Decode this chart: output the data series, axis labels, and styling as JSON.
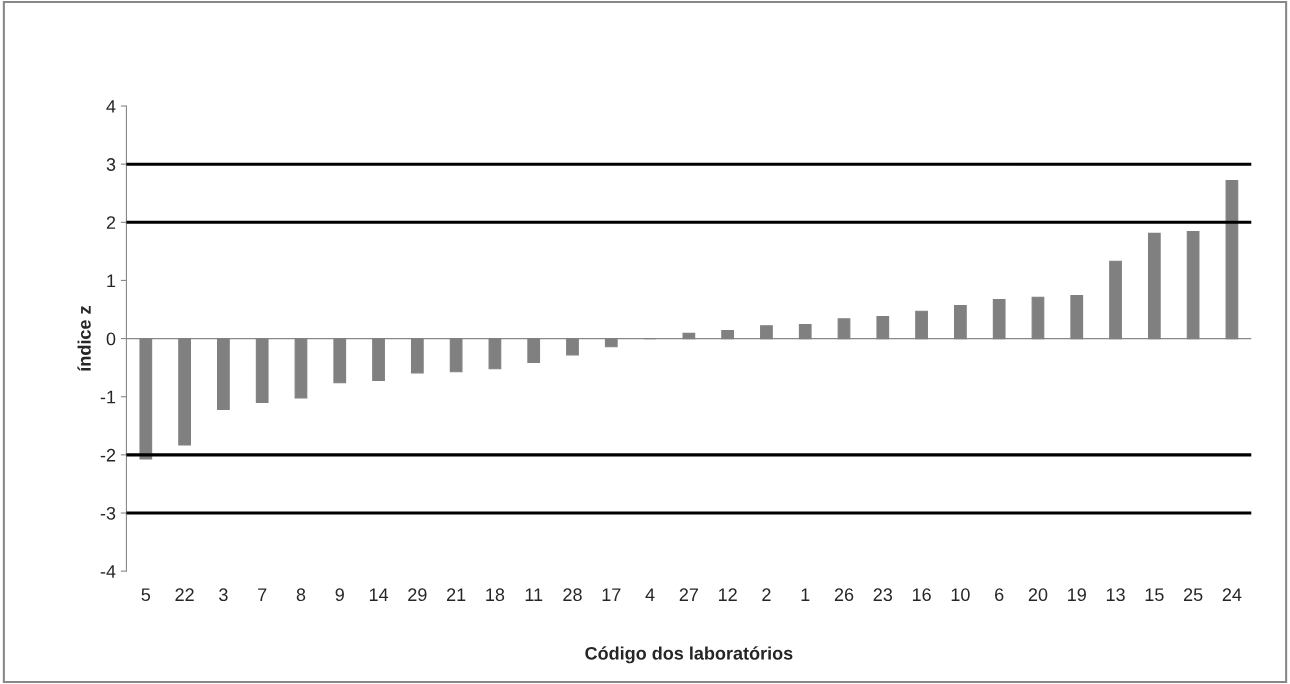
{
  "chart_data": {
    "type": "bar",
    "xlabel": "Código dos laboratórios",
    "ylabel": "índice z",
    "categories": [
      "5",
      "22",
      "3",
      "7",
      "8",
      "9",
      "14",
      "29",
      "21",
      "18",
      "11",
      "28",
      "17",
      "4",
      "27",
      "12",
      "2",
      "1",
      "26",
      "23",
      "16",
      "10",
      "6",
      "20",
      "19",
      "13",
      "15",
      "25",
      "24"
    ],
    "values": [
      -2.07,
      -1.83,
      -1.22,
      -1.1,
      -1.02,
      -0.76,
      -0.72,
      -0.59,
      -0.57,
      -0.52,
      -0.41,
      -0.28,
      -0.14,
      0,
      0.09,
      0.14,
      0.22,
      0.24,
      0.34,
      0.38,
      0.47,
      0.57,
      0.67,
      0.71,
      0.74,
      1.33,
      1.81,
      1.84,
      2.72
    ],
    "color": "#808080",
    "ylim": [
      -4,
      4
    ],
    "yticks": [
      -4,
      -3,
      -2,
      -1,
      0,
      1,
      2,
      3,
      4
    ],
    "ref_lines": [
      {
        "axis": "y",
        "value": 3,
        "color": "#000000",
        "line_style": "solid"
      },
      {
        "axis": "y",
        "value": 2,
        "color": "#000000",
        "line_style": "solid"
      },
      {
        "axis": "y",
        "value": -2,
        "color": "#000000",
        "line_style": "solid"
      },
      {
        "axis": "y",
        "value": -3,
        "color": "#000000",
        "line_style": "solid"
      }
    ],
    "grid": false,
    "legend": false
  }
}
